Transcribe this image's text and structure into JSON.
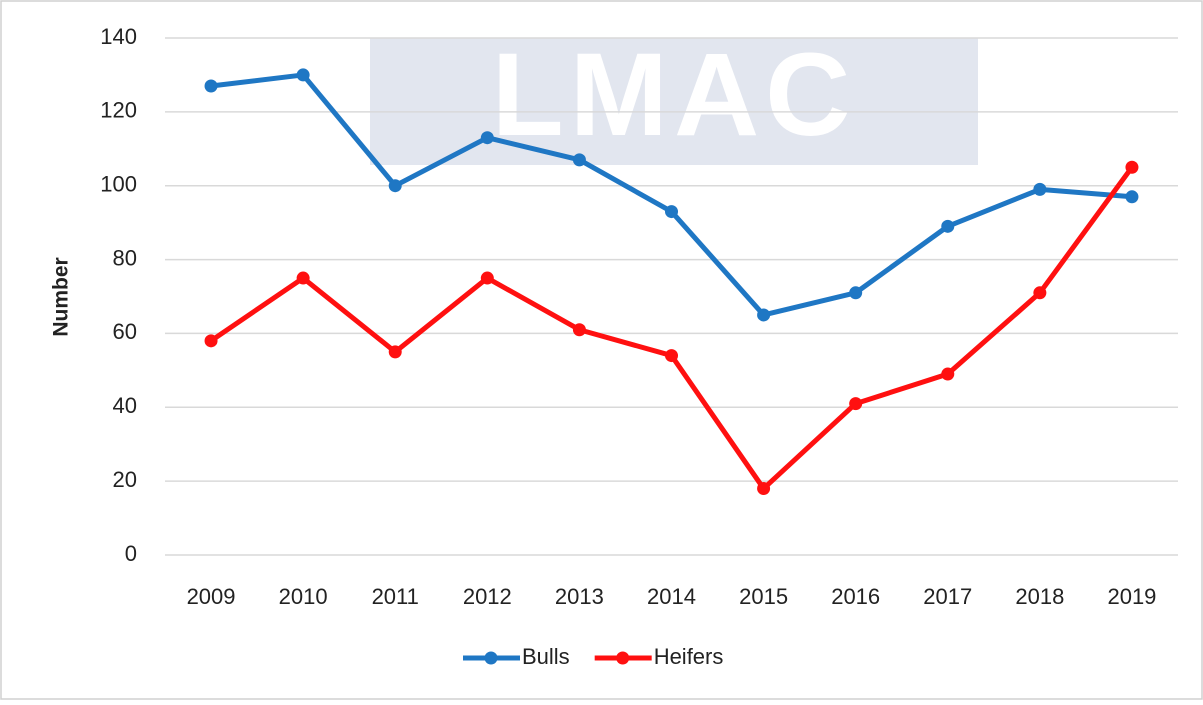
{
  "chart_data": {
    "type": "line",
    "watermark": "LMAC",
    "y_label": "Number",
    "categories": [
      "2009",
      "2010",
      "2011",
      "2012",
      "2013",
      "2014",
      "2015",
      "2016",
      "2017",
      "2018",
      "2019"
    ],
    "series": [
      {
        "name": "Bulls",
        "color": "#1f77c4",
        "values": [
          127,
          130,
          100,
          113,
          107,
          93,
          65,
          71,
          89,
          99,
          97
        ]
      },
      {
        "name": "Heifers",
        "color": "#ff1010",
        "values": [
          58,
          75,
          55,
          75,
          61,
          54,
          18,
          41,
          49,
          71,
          105
        ]
      }
    ],
    "ylim": [
      0,
      140
    ],
    "yticks": [
      0,
      20,
      40,
      60,
      80,
      100,
      120,
      140
    ],
    "grid": true,
    "legend": "bottom"
  }
}
